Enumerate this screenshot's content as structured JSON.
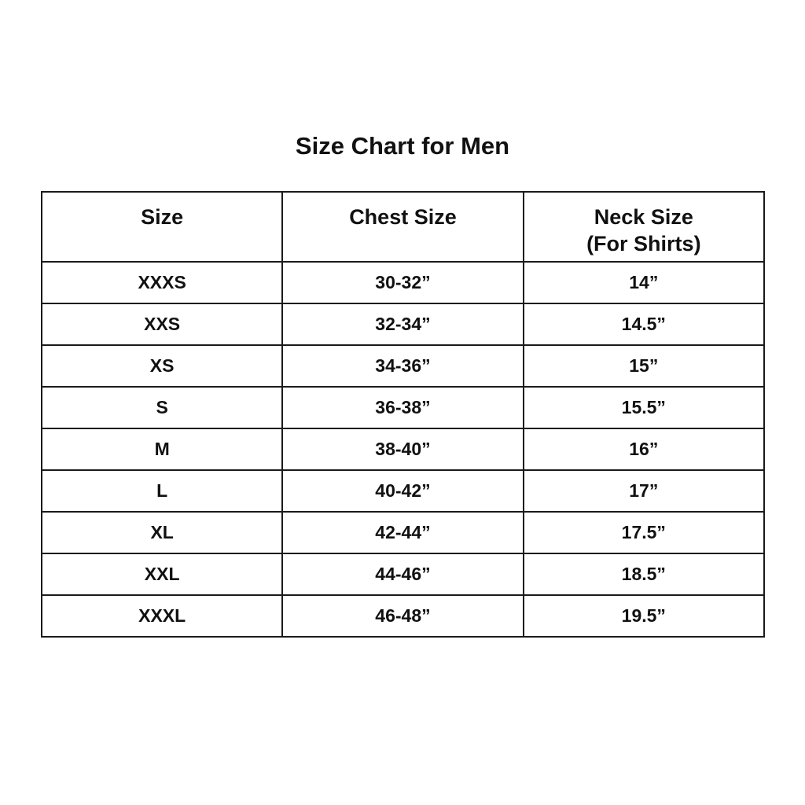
{
  "title": "Size Chart for Men",
  "headers": [
    "Size",
    "Chest Size",
    "Neck Size",
    "(For Shirts)"
  ],
  "rows": [
    [
      "XXXS",
      "30-32”",
      "14”"
    ],
    [
      "XXS",
      "32-34”",
      "14.5”"
    ],
    [
      "XS",
      "34-36”",
      "15”"
    ],
    [
      "S",
      "36-38”",
      "15.5”"
    ],
    [
      "M",
      "38-40”",
      "16”"
    ],
    [
      "L",
      "40-42”",
      "17”"
    ],
    [
      "XL",
      "42-44”",
      "17.5”"
    ],
    [
      "XXL",
      "44-46”",
      "18.5”"
    ],
    [
      "XXXL",
      "46-48”",
      "19.5”"
    ]
  ]
}
